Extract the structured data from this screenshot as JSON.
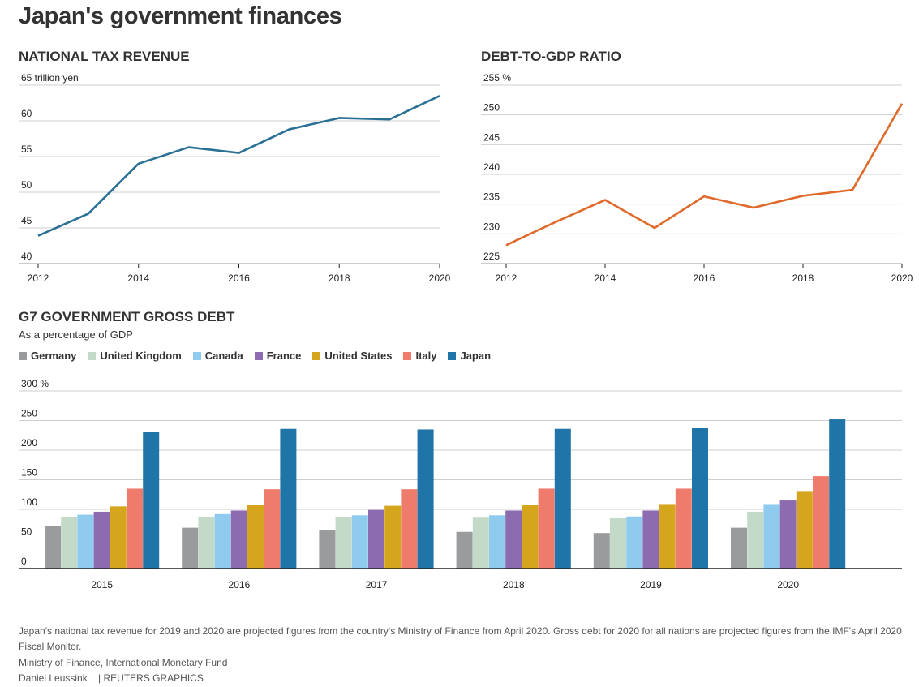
{
  "page_title": "Japan's government finances",
  "colors": {
    "tax_line": "#2a7094",
    "debt_line": "#e06a2b",
    "grid": "#cfcfcf",
    "axis": "#222222"
  },
  "chart_data": [
    {
      "id": "tax",
      "type": "line",
      "title": "NATIONAL TAX REVENUE",
      "unit_label": "65 trillion yen",
      "x": [
        2012,
        2013,
        2014,
        2015,
        2016,
        2017,
        2018,
        2019,
        2020
      ],
      "values": [
        43.9,
        47.0,
        54.0,
        56.3,
        55.5,
        58.8,
        60.4,
        60.2,
        63.5
      ],
      "ylim": [
        40,
        65
      ],
      "yticks": [
        "40",
        "45",
        "50",
        "55",
        "60"
      ],
      "xticks": [
        "2012",
        "2014",
        "2016",
        "2018",
        "2020"
      ],
      "grid": true
    },
    {
      "id": "debt",
      "type": "line",
      "title": "DEBT-TO-GDP RATIO",
      "unit_label": "255 %",
      "x": [
        2012,
        2013,
        2014,
        2015,
        2016,
        2017,
        2018,
        2019,
        2020
      ],
      "values": [
        228.1,
        232.0,
        235.7,
        231.0,
        236.3,
        234.4,
        236.4,
        237.4,
        251.9
      ],
      "ylim": [
        225,
        255
      ],
      "yticks": [
        "225",
        "230",
        "235",
        "240",
        "245",
        "250"
      ],
      "xticks": [
        "2012",
        "2014",
        "2016",
        "2018",
        "2020"
      ],
      "grid": true
    },
    {
      "id": "g7",
      "type": "bar",
      "title": "G7 GOVERNMENT GROSS DEBT",
      "subtitle": "As a percentage of GDP",
      "unit_label": "300 %",
      "categories": [
        "2015",
        "2016",
        "2017",
        "2018",
        "2019",
        "2020"
      ],
      "ylim": [
        0,
        300
      ],
      "yticks": [
        "0",
        "50",
        "100",
        "150",
        "200",
        "250"
      ],
      "grid": true,
      "legend_position": "top-left",
      "series": [
        {
          "name": "Germany",
          "color": "#9a9b9d",
          "values": [
            72,
            69,
            65,
            62,
            60,
            69
          ]
        },
        {
          "name": "United Kingdom",
          "color": "#c4dac8",
          "values": [
            87,
            87,
            87,
            86,
            85,
            96
          ]
        },
        {
          "name": "Canada",
          "color": "#8fcbee",
          "values": [
            91,
            92,
            90,
            90,
            88,
            109
          ]
        },
        {
          "name": "France",
          "color": "#8c6bb1",
          "values": [
            96,
            98,
            99,
            98,
            98,
            115
          ]
        },
        {
          "name": "United States",
          "color": "#d4a51d",
          "values": [
            105,
            107,
            106,
            107,
            109,
            131
          ]
        },
        {
          "name": "Italy",
          "color": "#ee7b6b",
          "values": [
            135,
            134,
            134,
            135,
            135,
            156
          ]
        },
        {
          "name": "Japan",
          "color": "#1f74a8",
          "values": [
            231,
            236,
            235,
            236,
            237,
            252
          ]
        }
      ]
    }
  ],
  "footnotes": {
    "note": "Japan's national tax revenue for 2019 and 2020 are projected figures from the country's Ministry of Finance from April 2020. Gross debt for 2020 for all nations are projected figures from the IMF's April 2020 Fiscal Monitor.",
    "source": "Ministry of Finance, International Monetary Fund",
    "credit": "Daniel Leussink    | REUTERS GRAPHICS"
  }
}
